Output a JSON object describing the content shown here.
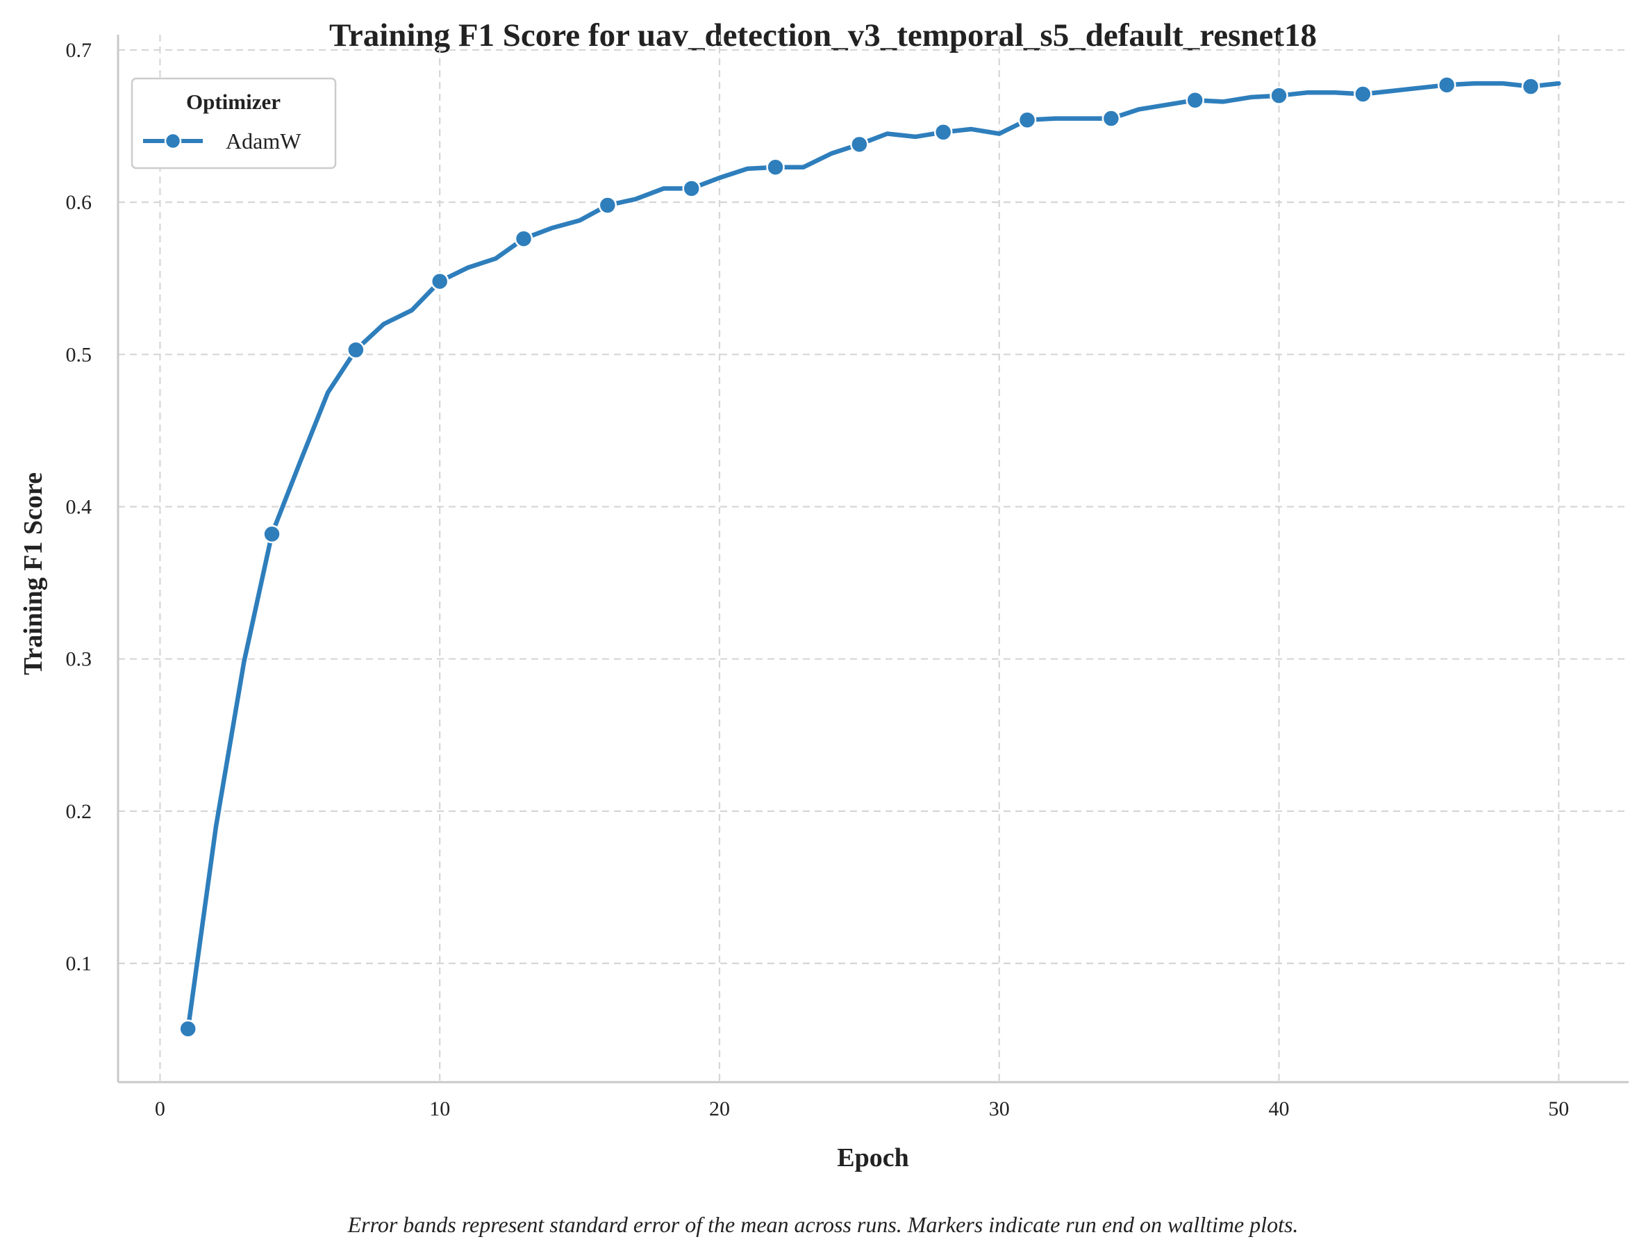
{
  "chart_data": {
    "type": "line",
    "title": "Training F1 Score for uav_detection_v3_temporal_s5_default_resnet18",
    "xlabel": "Epoch",
    "ylabel": "Training F1 Score",
    "xlim": [
      -1.5,
      52.5
    ],
    "ylim": [
      0.022,
      0.71
    ],
    "xticks": [
      0,
      10,
      20,
      30,
      40,
      50
    ],
    "yticks": [
      0.1,
      0.2,
      0.3,
      0.4,
      0.5,
      0.6,
      0.7
    ],
    "xtick_labels": [
      "0",
      "10",
      "20",
      "30",
      "40",
      "50"
    ],
    "ytick_labels": [
      "0.1",
      "0.2",
      "0.3",
      "0.4",
      "0.5",
      "0.6",
      "0.7"
    ],
    "grid": true,
    "legend": {
      "title": "Optimizer",
      "placement": "top-left"
    },
    "series": [
      {
        "name": "AdamW",
        "color": "#2e7ebc",
        "marker_every": 3,
        "x": [
          1,
          2,
          3,
          4,
          5,
          6,
          7,
          8,
          9,
          10,
          11,
          12,
          13,
          14,
          15,
          16,
          17,
          18,
          19,
          20,
          21,
          22,
          23,
          24,
          25,
          26,
          27,
          28,
          29,
          30,
          31,
          32,
          33,
          34,
          35,
          36,
          37,
          38,
          39,
          40,
          41,
          42,
          43,
          44,
          45,
          46,
          47,
          48,
          49,
          50
        ],
        "y": [
          0.057,
          0.19,
          0.298,
          0.382,
          0.429,
          0.475,
          0.503,
          0.52,
          0.529,
          0.548,
          0.557,
          0.563,
          0.576,
          0.583,
          0.588,
          0.598,
          0.602,
          0.609,
          0.609,
          0.616,
          0.622,
          0.623,
          0.623,
          0.632,
          0.638,
          0.645,
          0.643,
          0.646,
          0.648,
          0.645,
          0.654,
          0.655,
          0.655,
          0.655,
          0.661,
          0.664,
          0.667,
          0.666,
          0.669,
          0.67,
          0.672,
          0.672,
          0.671,
          0.673,
          0.675,
          0.677,
          0.678,
          0.678,
          0.676,
          0.678
        ]
      }
    ]
  },
  "footnote": "Error bands represent standard error of the mean across runs. Markers indicate run end on walltime plots."
}
